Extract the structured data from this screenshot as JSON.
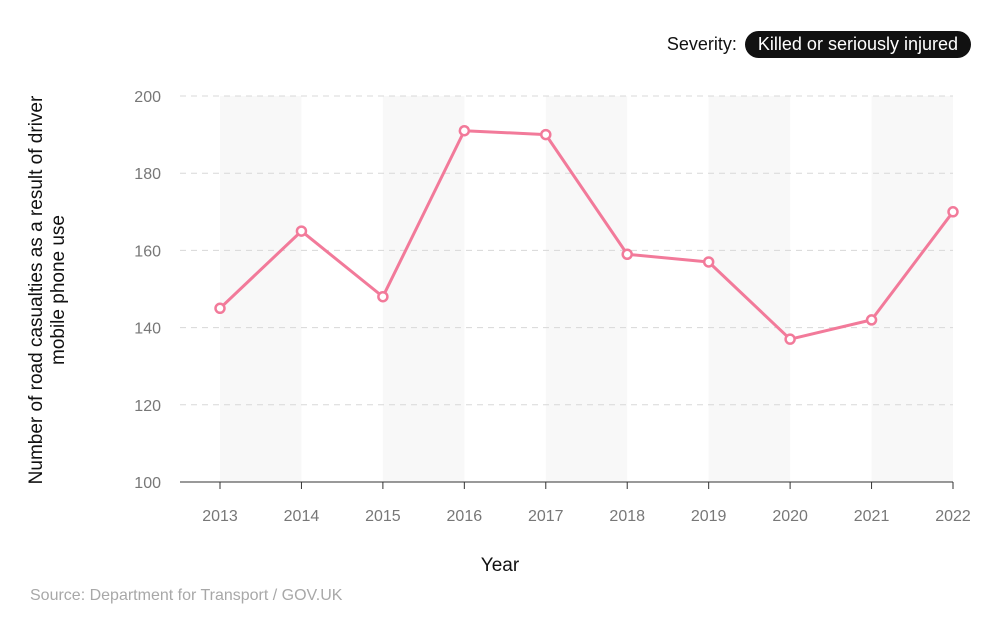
{
  "legend": {
    "label": "Severity:",
    "selected": "Killed or seriously injured"
  },
  "source": "Source: Department for Transport / GOV.UK",
  "chart_data": {
    "type": "line",
    "xlabel": "Year",
    "ylabel": "Number of road casualties as a result of driver mobile phone use",
    "categories": [
      "2013",
      "2014",
      "2015",
      "2016",
      "2017",
      "2018",
      "2019",
      "2020",
      "2021",
      "2022"
    ],
    "values": [
      145,
      165,
      148,
      191,
      190,
      159,
      157,
      137,
      142,
      170
    ],
    "ylim": [
      100,
      200
    ],
    "yticks": [
      100,
      120,
      140,
      160,
      180,
      200
    ],
    "grid": true,
    "line_color": "#f27a9a"
  }
}
